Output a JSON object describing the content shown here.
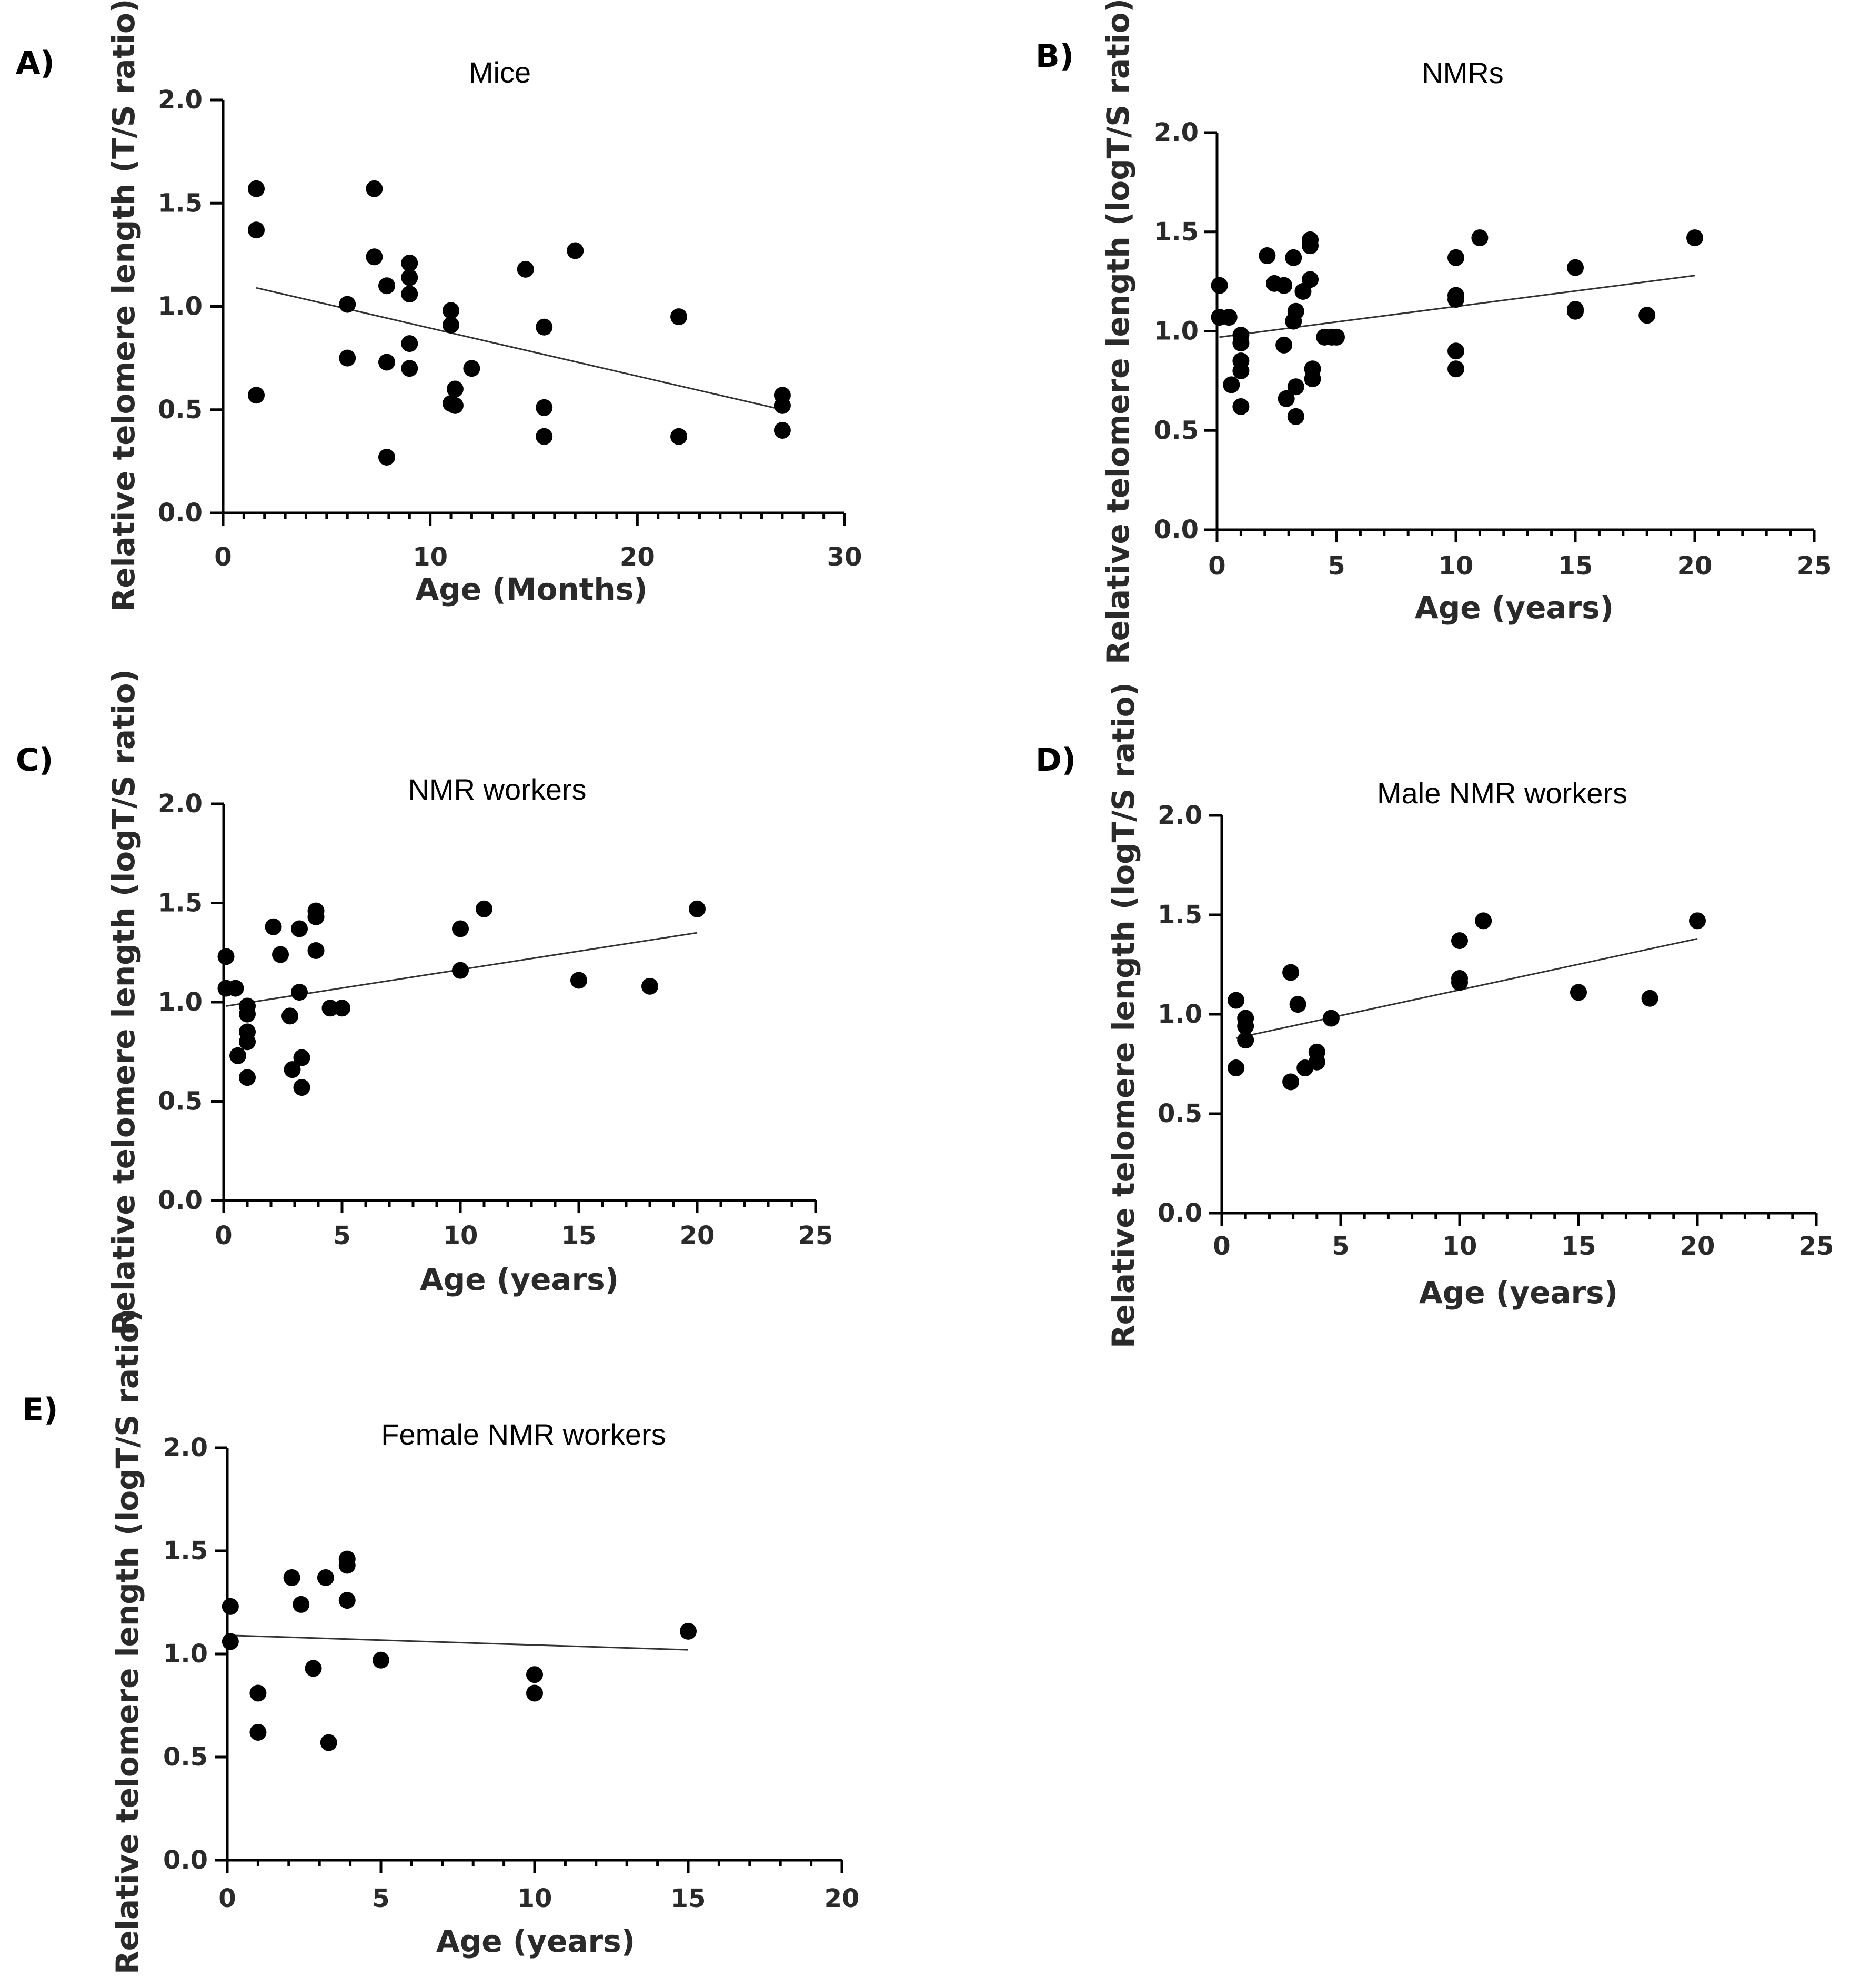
{
  "chart_data": [
    {
      "panel": "A)",
      "type": "scatter",
      "title": "Mice",
      "xlabel": "Age (Months)",
      "ylabel": "Relative telomere length (T/S ratio)",
      "xlim": [
        0,
        30
      ],
      "ylim": [
        0,
        2.0
      ],
      "xticks": [
        0,
        10,
        20,
        30
      ],
      "xtick_labels": [
        "0",
        "10",
        "20",
        "30"
      ],
      "yticks": [
        0,
        0.5,
        1.0,
        1.5,
        2.0
      ],
      "ytick_labels": [
        "0.0",
        "0.5",
        "1.0",
        "1.5",
        "2.0"
      ],
      "x_minor_step": 1,
      "points": [
        [
          1.6,
          1.57
        ],
        [
          1.6,
          1.37
        ],
        [
          1.6,
          0.57
        ],
        [
          6,
          1.01
        ],
        [
          6,
          0.75
        ],
        [
          7.3,
          1.57
        ],
        [
          7.3,
          1.24
        ],
        [
          7.9,
          1.1
        ],
        [
          7.9,
          0.73
        ],
        [
          7.9,
          0.27
        ],
        [
          9,
          1.21
        ],
        [
          9,
          1.14
        ],
        [
          9,
          1.06
        ],
        [
          9,
          0.82
        ],
        [
          9,
          0.7
        ],
        [
          11,
          0.98
        ],
        [
          11,
          0.91
        ],
        [
          11,
          0.53
        ],
        [
          11.2,
          0.52
        ],
        [
          11.2,
          0.6
        ],
        [
          12,
          0.7
        ],
        [
          14.6,
          1.18
        ],
        [
          15.5,
          0.9
        ],
        [
          15.5,
          0.51
        ],
        [
          15.5,
          0.37
        ],
        [
          17,
          1.27
        ],
        [
          22,
          0.95
        ],
        [
          22,
          0.37
        ],
        [
          27,
          0.57
        ],
        [
          27,
          0.52
        ],
        [
          27,
          0.4
        ]
      ],
      "trendline": [
        [
          1.6,
          1.09
        ],
        [
          27,
          0.5
        ]
      ]
    },
    {
      "panel": "B)",
      "type": "scatter",
      "title": "NMRs",
      "xlabel": "Age (years)",
      "ylabel": "Relative telomere length (logT/S ratio)",
      "xlim": [
        0,
        25
      ],
      "ylim": [
        0,
        2.0
      ],
      "xticks": [
        0,
        5,
        10,
        15,
        20,
        25
      ],
      "xtick_labels": [
        "0",
        "5",
        "10",
        "15",
        "20",
        "25"
      ],
      "yticks": [
        0,
        0.5,
        1.0,
        1.5,
        2.0
      ],
      "ytick_labels": [
        "0.0",
        "0.5",
        "1.0",
        "1.5",
        "2.0"
      ],
      "x_minor_step": 1,
      "points": [
        [
          0.1,
          1.23
        ],
        [
          0.1,
          1.07
        ],
        [
          0.5,
          1.07
        ],
        [
          0.6,
          0.73
        ],
        [
          1,
          0.98
        ],
        [
          1,
          0.94
        ],
        [
          1,
          0.85
        ],
        [
          1,
          0.8
        ],
        [
          1,
          0.62
        ],
        [
          2.1,
          1.38
        ],
        [
          2.4,
          1.24
        ],
        [
          2.8,
          1.23
        ],
        [
          2.8,
          0.93
        ],
        [
          2.9,
          0.66
        ],
        [
          3.2,
          1.37
        ],
        [
          3.2,
          1.05
        ],
        [
          3.3,
          1.1
        ],
        [
          3.3,
          0.72
        ],
        [
          3.3,
          0.57
        ],
        [
          3.6,
          1.2
        ],
        [
          3.9,
          1.46
        ],
        [
          3.9,
          1.43
        ],
        [
          3.9,
          1.26
        ],
        [
          4,
          0.81
        ],
        [
          4,
          0.76
        ],
        [
          4.5,
          0.97
        ],
        [
          4.8,
          0.97
        ],
        [
          5,
          0.97
        ],
        [
          10,
          1.37
        ],
        [
          10,
          1.18
        ],
        [
          10,
          1.16
        ],
        [
          10,
          0.9
        ],
        [
          10,
          0.81
        ],
        [
          11,
          1.47
        ],
        [
          15,
          1.32
        ],
        [
          15,
          1.11
        ],
        [
          15,
          1.1
        ],
        [
          18,
          1.08
        ],
        [
          20,
          1.47
        ]
      ],
      "trendline": [
        [
          0.1,
          0.97
        ],
        [
          20,
          1.28
        ]
      ]
    },
    {
      "panel": "C)",
      "type": "scatter",
      "title": "NMR workers",
      "xlabel": "Age (years)",
      "ylabel": "Relative telomere length (logT/S ratio)",
      "xlim": [
        0,
        25
      ],
      "ylim": [
        0,
        2.0
      ],
      "xticks": [
        0,
        5,
        10,
        15,
        20,
        25
      ],
      "xtick_labels": [
        "0",
        "5",
        "10",
        "15",
        "20",
        "25"
      ],
      "yticks": [
        0,
        0.5,
        1.0,
        1.5,
        2.0
      ],
      "ytick_labels": [
        "0.0",
        "0.5",
        "1.0",
        "1.5",
        "2.0"
      ],
      "x_minor_step": 1,
      "points": [
        [
          0.1,
          1.23
        ],
        [
          0.1,
          1.07
        ],
        [
          0.5,
          1.07
        ],
        [
          0.6,
          0.73
        ],
        [
          1,
          0.98
        ],
        [
          1,
          0.94
        ],
        [
          1,
          0.85
        ],
        [
          1,
          0.8
        ],
        [
          1,
          0.62
        ],
        [
          2.1,
          1.38
        ],
        [
          2.4,
          1.24
        ],
        [
          2.8,
          0.93
        ],
        [
          2.9,
          0.66
        ],
        [
          3.2,
          1.37
        ],
        [
          3.2,
          1.05
        ],
        [
          3.3,
          0.72
        ],
        [
          3.3,
          0.57
        ],
        [
          3.9,
          1.46
        ],
        [
          3.9,
          1.43
        ],
        [
          3.9,
          1.26
        ],
        [
          4.5,
          0.97
        ],
        [
          5,
          0.97
        ],
        [
          10,
          1.37
        ],
        [
          10,
          1.16
        ],
        [
          11,
          1.47
        ],
        [
          15,
          1.11
        ],
        [
          18,
          1.08
        ],
        [
          20,
          1.47
        ]
      ],
      "trendline": [
        [
          0.1,
          0.98
        ],
        [
          20,
          1.35
        ]
      ]
    },
    {
      "panel": "D)",
      "type": "scatter",
      "title": "Male NMR workers",
      "xlabel": "Age (years)",
      "ylabel": "Relative telomere length (logT/S ratio)",
      "xlim": [
        0,
        25
      ],
      "ylim": [
        0,
        2.0
      ],
      "xticks": [
        0,
        5,
        10,
        15,
        20,
        25
      ],
      "xtick_labels": [
        "0",
        "5",
        "10",
        "15",
        "20",
        "25"
      ],
      "yticks": [
        0,
        0.5,
        1.0,
        1.5,
        2.0
      ],
      "ytick_labels": [
        "0.0",
        "0.5",
        "1.0",
        "1.5",
        "2.0"
      ],
      "x_minor_step": 1,
      "points": [
        [
          0.6,
          1.07
        ],
        [
          0.6,
          0.73
        ],
        [
          1,
          0.98
        ],
        [
          1,
          0.94
        ],
        [
          1,
          0.87
        ],
        [
          2.9,
          1.21
        ],
        [
          2.9,
          0.66
        ],
        [
          3.2,
          1.05
        ],
        [
          3.5,
          0.73
        ],
        [
          4,
          0.81
        ],
        [
          4,
          0.76
        ],
        [
          4.6,
          0.98
        ],
        [
          10,
          1.37
        ],
        [
          10,
          1.18
        ],
        [
          10,
          1.16
        ],
        [
          11,
          1.47
        ],
        [
          15,
          1.11
        ],
        [
          18,
          1.08
        ],
        [
          20,
          1.47
        ]
      ],
      "trendline": [
        [
          0.6,
          0.88
        ],
        [
          20,
          1.38
        ]
      ]
    },
    {
      "panel": "E)",
      "type": "scatter",
      "title": "Female NMR workers",
      "xlabel": "Age (years)",
      "ylabel": "Relative telomere length (logT/S ratio)",
      "xlim": [
        0,
        20
      ],
      "ylim": [
        0,
        2.0
      ],
      "xticks": [
        0,
        5,
        10,
        15,
        20
      ],
      "xtick_labels": [
        "0",
        "5",
        "10",
        "15",
        "20"
      ],
      "yticks": [
        0,
        0.5,
        1.0,
        1.5,
        2.0
      ],
      "ytick_labels": [
        "0.0",
        "0.5",
        "1.0",
        "1.5",
        "2.0"
      ],
      "x_minor_step": 1,
      "points": [
        [
          0.1,
          1.23
        ],
        [
          0.1,
          1.06
        ],
        [
          1,
          0.81
        ],
        [
          1,
          0.62
        ],
        [
          2.1,
          1.37
        ],
        [
          2.4,
          1.24
        ],
        [
          2.8,
          0.93
        ],
        [
          3.2,
          1.37
        ],
        [
          3.3,
          0.57
        ],
        [
          3.9,
          1.46
        ],
        [
          3.9,
          1.43
        ],
        [
          3.9,
          1.26
        ],
        [
          5,
          0.97
        ],
        [
          10,
          0.9
        ],
        [
          10,
          0.81
        ],
        [
          15,
          1.11
        ]
      ],
      "trendline": [
        [
          0.1,
          1.09
        ],
        [
          15,
          1.02
        ]
      ]
    }
  ]
}
